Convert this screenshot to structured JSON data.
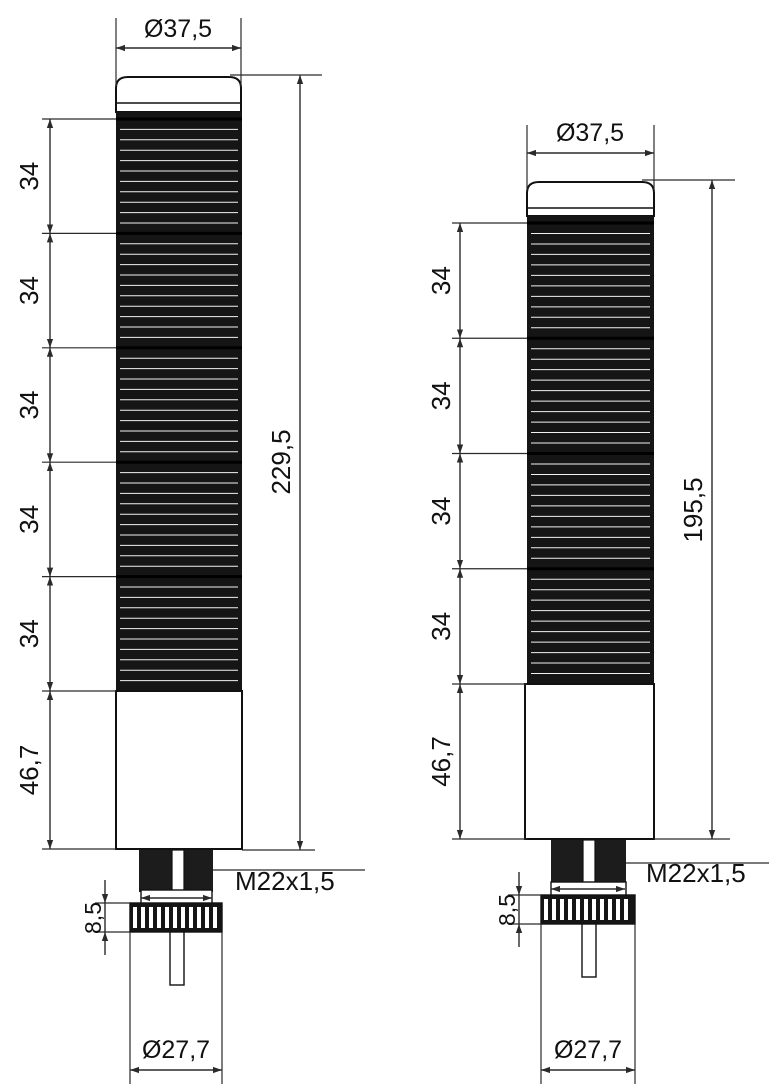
{
  "colors": {
    "body_dark": "#151515",
    "rib_line": "#f2f2f2",
    "segment_divider": "#000000",
    "cap_fill": "#ffffff",
    "line": "#111111"
  },
  "towers": [
    {
      "id": "tower-5-tier",
      "segments_count": 5,
      "top_diameter": "Ø37,5",
      "segment_heights": [
        "34",
        "34",
        "34",
        "34",
        "34"
      ],
      "base_height": "46,7",
      "total_height": "229,5",
      "thread": "M22x1,5",
      "nut_height": "8,5",
      "nut_diameter": "Ø27,7"
    },
    {
      "id": "tower-4-tier",
      "segments_count": 4,
      "top_diameter": "Ø37,5",
      "segment_heights": [
        "34",
        "34",
        "34",
        "34"
      ],
      "base_height": "46,7",
      "total_height": "195,5",
      "thread": "M22x1,5",
      "nut_height": "8,5",
      "nut_diameter": "Ø27,7"
    }
  ]
}
